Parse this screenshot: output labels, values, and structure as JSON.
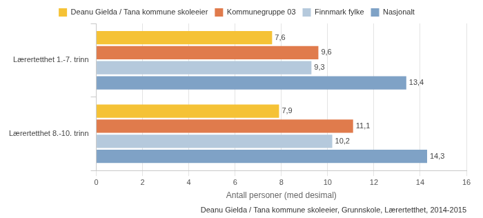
{
  "chart_data": {
    "type": "bar",
    "orientation": "horizontal",
    "categories": [
      "Lærertetthet 1.-7. trinn",
      "Lærertetthet 8.-10. trinn"
    ],
    "series": [
      {
        "name": "Deanu Gielda / Tana kommune skoleeier",
        "color": "#f5c236",
        "values": [
          7.6,
          7.9
        ],
        "value_labels": [
          "7,6",
          "7,9"
        ]
      },
      {
        "name": "Kommunegruppe 03",
        "color": "#e07b4c",
        "values": [
          9.6,
          11.1
        ],
        "value_labels": [
          "9,6",
          "11,1"
        ]
      },
      {
        "name": "Finnmark fylke",
        "color": "#b5c9dc",
        "values": [
          9.3,
          10.2
        ],
        "value_labels": [
          "9,3",
          "10,2"
        ]
      },
      {
        "name": "Nasjonalt",
        "color": "#7fa2c6",
        "values": [
          13.4,
          14.3
        ],
        "value_labels": [
          "13,4",
          "14,3"
        ]
      }
    ],
    "xlabel": "Antall personer (med desimal)",
    "subtitle": "Deanu Gielda / Tana kommune skoleeier, Grunnskole, Lærertetthet, 2014-2015",
    "xlim": [
      0,
      16
    ],
    "xticks": [
      0,
      2,
      4,
      6,
      8,
      10,
      12,
      14,
      16
    ],
    "grid": true,
    "legend": "top",
    "data_labels": true
  }
}
